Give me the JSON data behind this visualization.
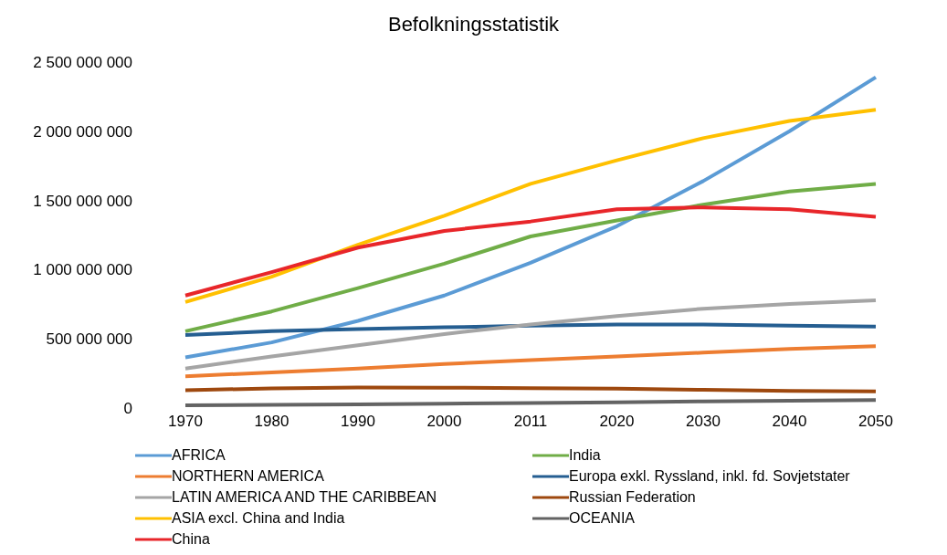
{
  "chart_data": {
    "type": "line",
    "title": "Befolkningsstatistik",
    "categories": [
      "1970",
      "1980",
      "1990",
      "2000",
      "2011",
      "2020",
      "2030",
      "2040",
      "2050"
    ],
    "ylim": [
      0,
      2500000000
    ],
    "yticks": [
      {
        "value": 0,
        "label": "0"
      },
      {
        "value": 500000000,
        "label": "500 000 000"
      },
      {
        "value": 1000000000,
        "label": "1 000 000 000"
      },
      {
        "value": 1500000000,
        "label": "1 500 000 000"
      },
      {
        "value": 2000000000,
        "label": "2 000 000 000"
      },
      {
        "value": 2500000000,
        "label": "2 500 000 000"
      }
    ],
    "grid": false,
    "legend": "bottom",
    "marker": "none",
    "line_style": "solid",
    "series": [
      {
        "name": "AFRICA",
        "color": "#5b9bd5",
        "values": [
          366000000,
          474000000,
          630000000,
          813000000,
          1050000000,
          1314000000,
          1640000000,
          2000000000,
          2390000000
        ]
      },
      {
        "name": "India",
        "color": "#70ad47",
        "values": [
          555000000,
          698000000,
          867000000,
          1043000000,
          1240000000,
          1355000000,
          1470000000,
          1565000000,
          1620000000
        ]
      },
      {
        "name": "NORTHERN AMERICA",
        "color": "#ed7d31",
        "values": [
          230000000,
          257000000,
          285000000,
          318000000,
          346000000,
          373000000,
          400000000,
          427000000,
          447000000
        ]
      },
      {
        "name": "Europa exkl. Ryssland, inkl. fd. Sovjetstater",
        "color": "#255e91",
        "values": [
          528000000,
          555000000,
          570000000,
          583000000,
          596000000,
          603000000,
          603000000,
          596000000,
          589000000
        ]
      },
      {
        "name": "LATIN AMERICA AND THE CARIBBEAN",
        "color": "#a5a5a5",
        "values": [
          285000000,
          373000000,
          454000000,
          535000000,
          603000000,
          664000000,
          718000000,
          752000000,
          779000000
        ]
      },
      {
        "name": "Russian Federation",
        "color": "#9e480e",
        "values": [
          129000000,
          142000000,
          149000000,
          147000000,
          143000000,
          140000000,
          132000000,
          124000000,
          120000000
        ]
      },
      {
        "name": "ASIA excl. China and India",
        "color": "#ffc000",
        "values": [
          766000000,
          949000000,
          1180000000,
          1390000000,
          1620000000,
          1790000000,
          1950000000,
          2075000000,
          2155000000
        ]
      },
      {
        "name": "OCEANIA",
        "color": "#636363",
        "values": [
          20000000,
          23000000,
          27000000,
          31000000,
          37000000,
          42000000,
          48000000,
          53000000,
          57000000
        ]
      },
      {
        "name": "China",
        "color": "#e8262a",
        "values": [
          813000000,
          982000000,
          1159000000,
          1280000000,
          1348000000,
          1436000000,
          1450000000,
          1436000000,
          1382000000
        ]
      }
    ]
  }
}
